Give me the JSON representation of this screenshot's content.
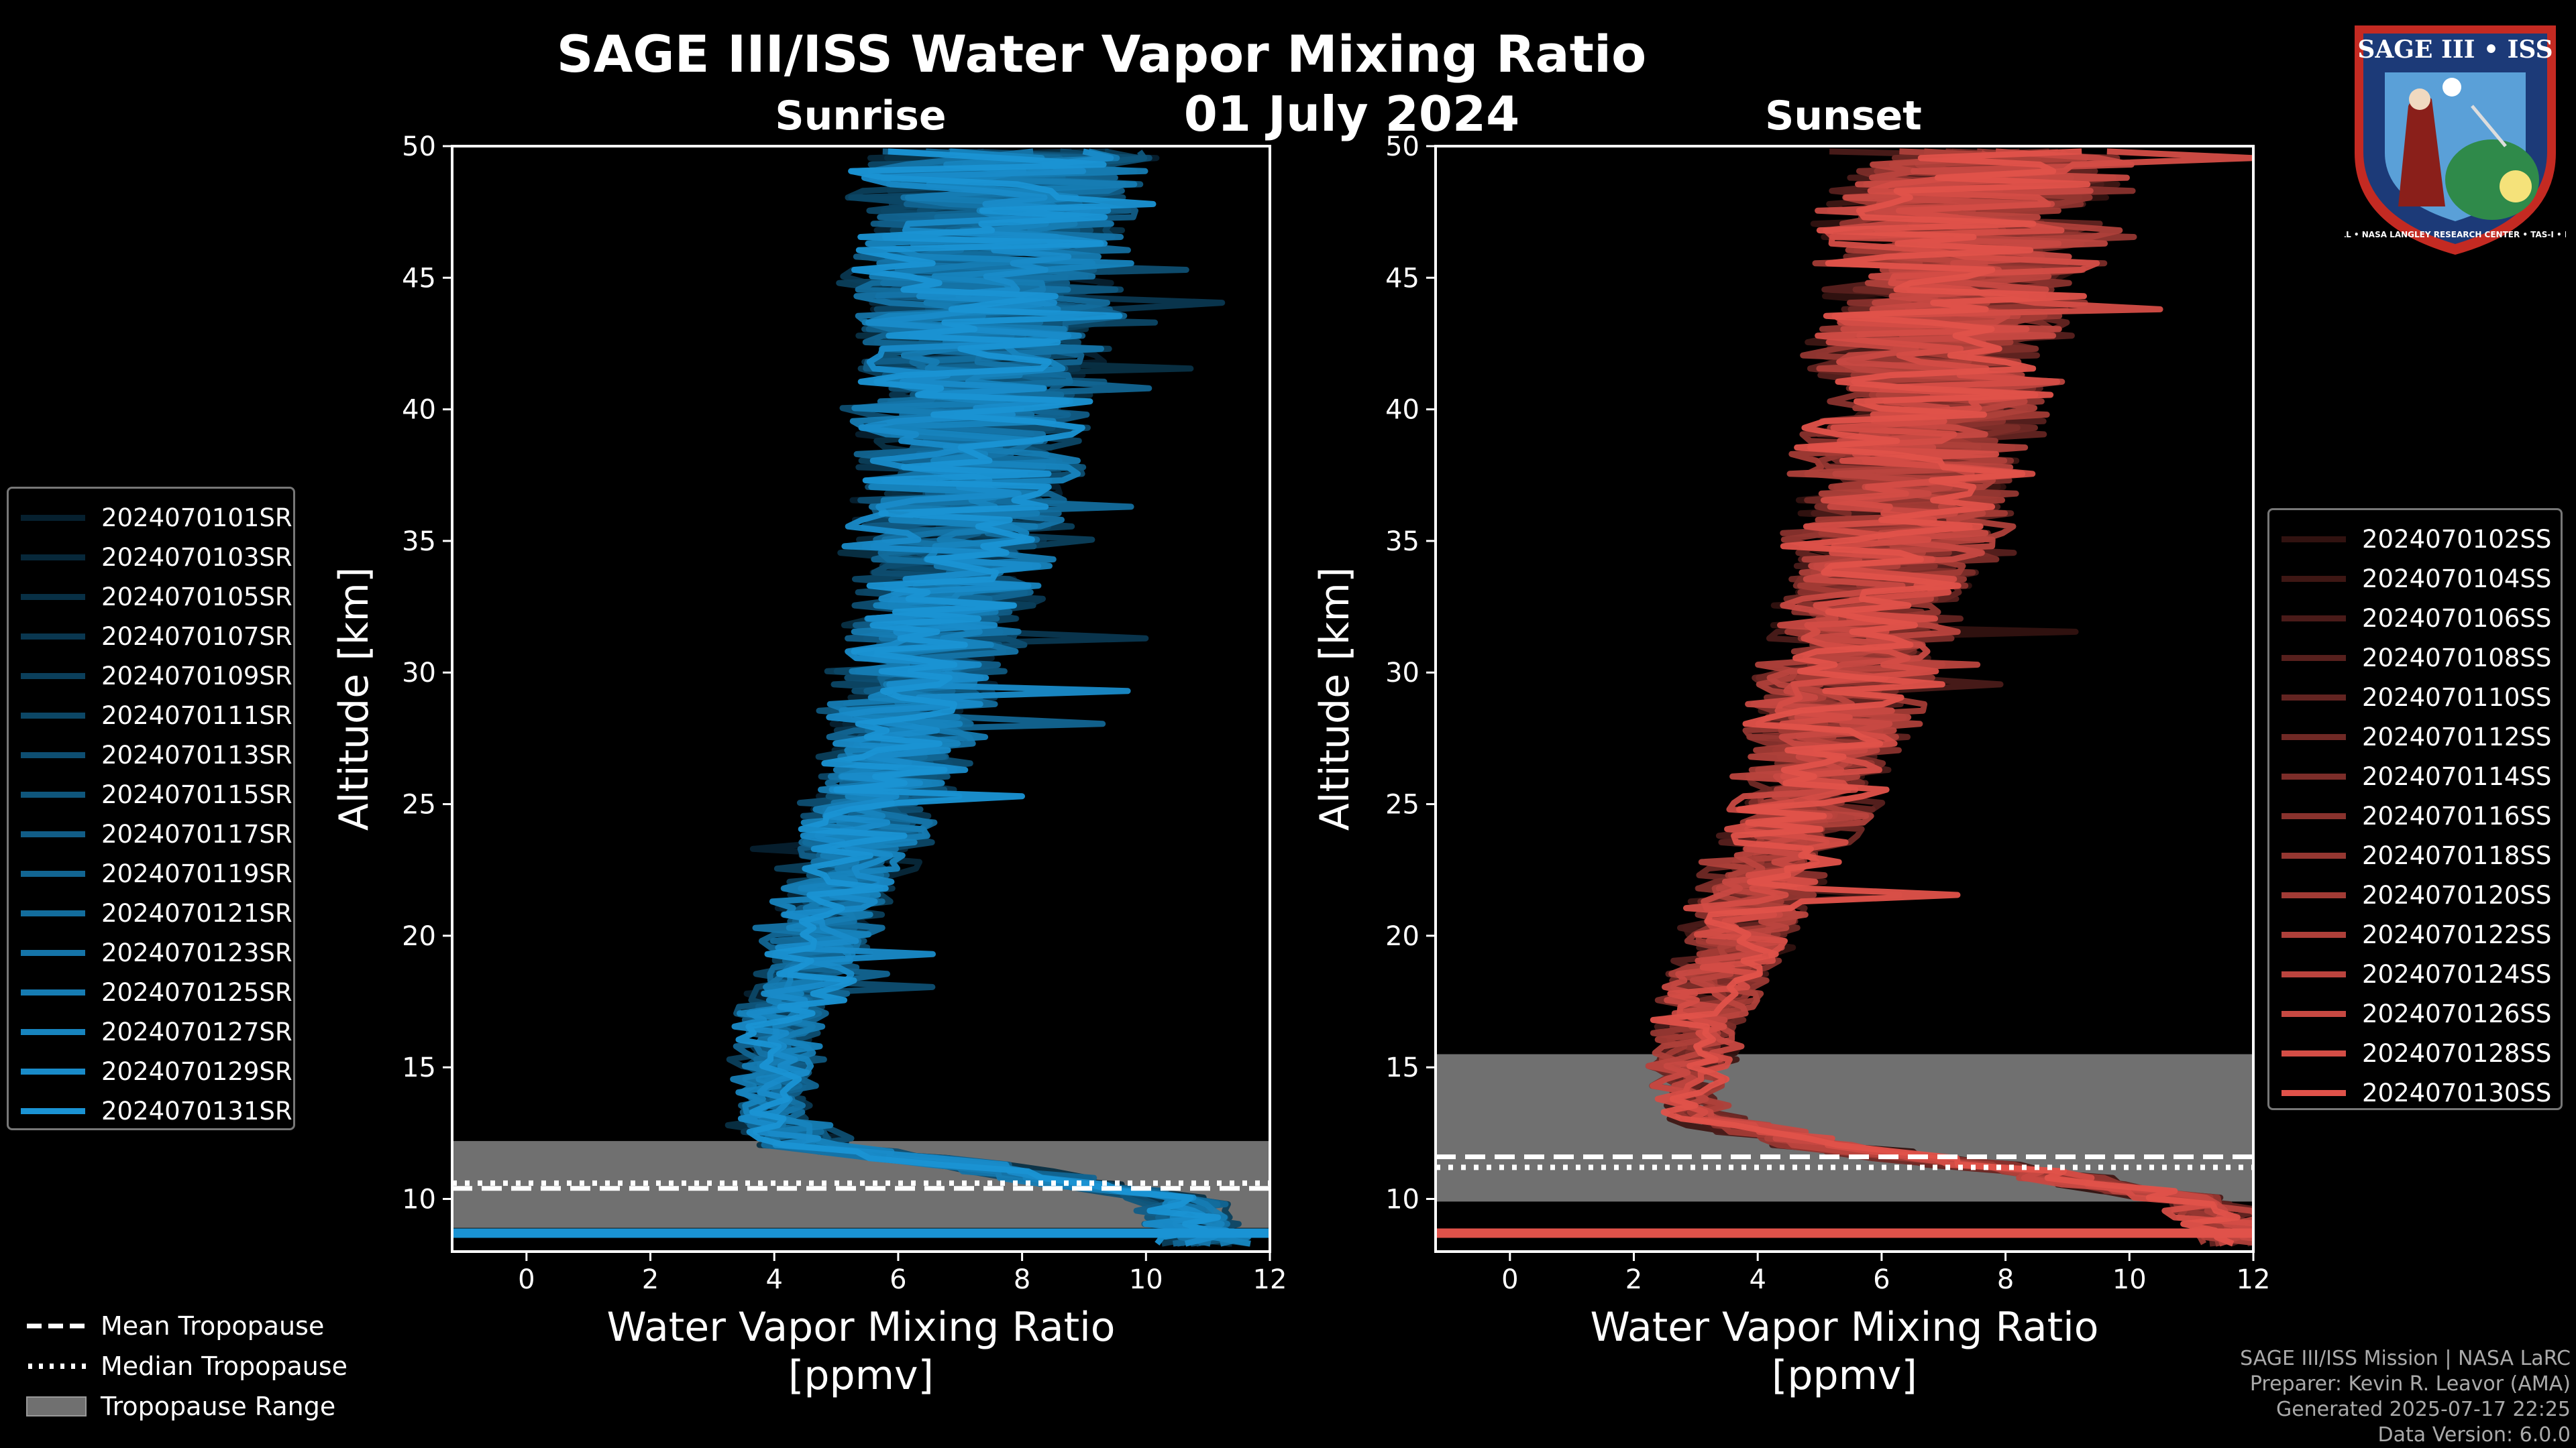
{
  "title": "SAGE III/ISS Water Vapor Mixing Ratio",
  "date": "01 July 2024",
  "colors": {
    "sunrise": "#1a93d4",
    "sunset": "#e0524a",
    "background": "#000000",
    "tropopause_range": "#707070"
  },
  "panels": {
    "left": {
      "subtitle": "Sunrise",
      "ylabel": "Altitude [km]",
      "xlabel_line1": "Water Vapor Mixing Ratio",
      "xlabel_line2": "[ppmv]"
    },
    "right": {
      "subtitle": "Sunset",
      "ylabel": "Altitude [km]",
      "xlabel_line1": "Water Vapor Mixing Ratio",
      "xlabel_line2": "[ppmv]"
    }
  },
  "legend_sunrise": [
    "2024070101SR",
    "2024070103SR",
    "2024070105SR",
    "2024070107SR",
    "2024070109SR",
    "2024070111SR",
    "2024070113SR",
    "2024070115SR",
    "2024070117SR",
    "2024070119SR",
    "2024070121SR",
    "2024070123SR",
    "2024070125SR",
    "2024070127SR",
    "2024070129SR",
    "2024070131SR"
  ],
  "legend_sunset": [
    "2024070102SS",
    "2024070104SS",
    "2024070106SS",
    "2024070108SS",
    "2024070110SS",
    "2024070112SS",
    "2024070114SS",
    "2024070116SS",
    "2024070118SS",
    "2024070120SS",
    "2024070122SS",
    "2024070124SS",
    "2024070126SS",
    "2024070128SS",
    "2024070130SS"
  ],
  "tropopause_legend": {
    "mean": "Mean Tropopause",
    "median": "Median Tropopause",
    "range": "Tropopause Range"
  },
  "credits": {
    "line1": "SAGE III/ISS Mission | NASA LaRC",
    "line2": "Preparer: Kevin R. Leavor (AMA)",
    "line3": "Generated 2025-07-17 22:25",
    "line4": "Data Version: 6.0.0"
  },
  "logo": {
    "name": "SAGE III • ISS",
    "ring_text": "BALL • NASA LANGLEY RESEARCH CENTER • TAS-I • ESA"
  },
  "chart_data": [
    {
      "type": "line",
      "title": "Sunrise",
      "xlabel": "Water Vapor Mixing Ratio [ppmv]",
      "ylabel": "Altitude [km]",
      "xlim": [
        -1.2,
        12
      ],
      "ylim": [
        8,
        50
      ],
      "xticks": [
        0,
        2,
        4,
        6,
        8,
        10,
        12
      ],
      "yticks": [
        10,
        15,
        20,
        25,
        30,
        35,
        40,
        45,
        50
      ],
      "series_names": [
        "2024070101SR",
        "2024070103SR",
        "2024070105SR",
        "2024070107SR",
        "2024070109SR",
        "2024070111SR",
        "2024070113SR",
        "2024070115SR",
        "2024070117SR",
        "2024070119SR",
        "2024070121SR",
        "2024070123SR",
        "2024070125SR",
        "2024070127SR",
        "2024070129SR",
        "2024070131SR"
      ],
      "mean_profile": {
        "altitude": [
          8.5,
          10,
          11,
          12,
          13,
          14,
          15,
          16,
          17,
          18,
          19,
          20,
          22,
          24,
          26,
          28,
          30,
          32,
          34,
          36,
          38,
          40,
          42,
          44,
          46,
          48,
          50
        ],
        "mixing_ratio": [
          11.0,
          10.5,
          8.0,
          4.5,
          4.0,
          4.0,
          4.0,
          4.1,
          4.2,
          4.4,
          4.6,
          4.8,
          5.1,
          5.5,
          5.8,
          6.1,
          6.4,
          6.6,
          6.8,
          7.0,
          7.1,
          7.2,
          7.3,
          7.4,
          7.5,
          7.6,
          7.7
        ]
      },
      "tropopause": {
        "mean": 10.4,
        "median": 10.6,
        "range": [
          8.9,
          12.2
        ]
      }
    },
    {
      "type": "line",
      "title": "Sunset",
      "xlabel": "Water Vapor Mixing Ratio [ppmv]",
      "ylabel": "Altitude [km]",
      "xlim": [
        -1.2,
        12
      ],
      "ylim": [
        8,
        50
      ],
      "xticks": [
        0,
        2,
        4,
        6,
        8,
        10,
        12
      ],
      "yticks": [
        10,
        15,
        20,
        25,
        30,
        35,
        40,
        45,
        50
      ],
      "series_names": [
        "2024070102SS",
        "2024070104SS",
        "2024070106SS",
        "2024070108SS",
        "2024070110SS",
        "2024070112SS",
        "2024070114SS",
        "2024070116SS",
        "2024070118SS",
        "2024070120SS",
        "2024070122SS",
        "2024070124SS",
        "2024070126SS",
        "2024070128SS",
        "2024070130SS"
      ],
      "mean_profile": {
        "altitude": [
          8.5,
          10,
          11,
          12,
          13,
          14,
          15,
          16,
          17,
          18,
          19,
          20,
          22,
          24,
          26,
          28,
          30,
          32,
          34,
          36,
          38,
          40,
          42,
          44,
          46,
          48,
          50
        ],
        "mixing_ratio": [
          12.0,
          11.0,
          8.5,
          5.0,
          3.2,
          2.9,
          2.9,
          3.0,
          3.1,
          3.3,
          3.5,
          3.7,
          4.1,
          4.5,
          4.9,
          5.2,
          5.5,
          5.8,
          6.1,
          6.3,
          6.5,
          6.7,
          6.9,
          7.1,
          7.3,
          7.5,
          7.7
        ]
      },
      "tropopause": {
        "mean": 11.6,
        "median": 11.2,
        "range": [
          9.9,
          15.5
        ]
      }
    }
  ]
}
